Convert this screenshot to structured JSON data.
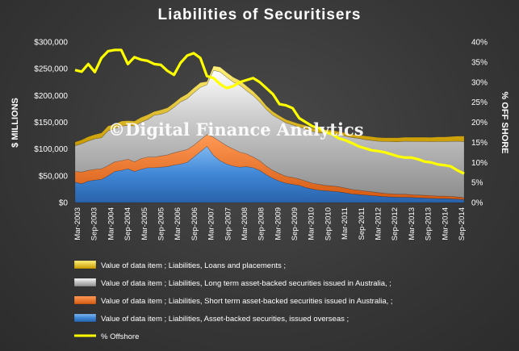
{
  "chart_data": {
    "type": "area",
    "title": "Liabilities  of Securitisers",
    "watermark": "©Digital Finance Analytics",
    "ylabel": "$ MILLIONS",
    "y2label": "% OFF SHORE",
    "ylim": [
      0,
      300000
    ],
    "y2lim": [
      0,
      0.4
    ],
    "yticks": [
      "$0",
      "$50,000",
      "$100,000",
      "$150,000",
      "$200,000",
      "$250,000",
      "$300,000"
    ],
    "y2ticks": [
      "0%",
      "5%",
      "10%",
      "15%",
      "20%",
      "25%",
      "30%",
      "35%",
      "40%"
    ],
    "xticks": [
      "Mar-2003",
      "Sep-2003",
      "Mar-2004",
      "Sep-2004",
      "Mar-2005",
      "Sep-2005",
      "Mar-2006",
      "Sep-2006",
      "Mar-2007",
      "Sep-2007",
      "Mar-2008",
      "Sep-2008",
      "Mar-2009",
      "Sep-2009",
      "Mar-2010",
      "Sep-2010",
      "Mar-2011",
      "Sep-2011",
      "Mar-2012",
      "Sep-2012",
      "Mar-2013",
      "Sep-2013",
      "Mar-2014",
      "Sep-2014"
    ],
    "stacked": true,
    "legend_position": "bottom",
    "series": [
      {
        "name": "Value of data item ;  Liabilities, Asset-backed securities, issued overseas ;",
        "color": "#4a8fd8",
        "values": [
          38000,
          35000,
          40000,
          42000,
          43000,
          50000,
          58000,
          60000,
          63000,
          58000,
          62000,
          65000,
          65000,
          66000,
          67000,
          70000,
          72000,
          75000,
          85000,
          95000,
          105000,
          88000,
          78000,
          72000,
          68000,
          66000,
          67000,
          65000,
          60000,
          52000,
          45000,
          40000,
          36000,
          34000,
          32000,
          28000,
          25000,
          23000,
          22000,
          21000,
          20000,
          18000,
          16000,
          15000,
          14000,
          13000,
          12000,
          11000,
          10500,
          10000,
          10000,
          9500,
          9000,
          8500,
          8000,
          7500,
          7500,
          7000,
          6500,
          5500
        ]
      },
      {
        "name": "Value of data item ;  Liabilities, Short term asset-backed securities issued in Australia, ;",
        "color": "#f07830",
        "values": [
          20000,
          22000,
          20000,
          20000,
          20000,
          19000,
          18000,
          18000,
          18000,
          18000,
          20000,
          20000,
          20000,
          21000,
          22000,
          23000,
          24000,
          24000,
          22000,
          22000,
          22000,
          34000,
          36000,
          34000,
          32000,
          28000,
          24000,
          20000,
          18000,
          16000,
          15000,
          14000,
          13000,
          13000,
          12000,
          12000,
          11000,
          11000,
          10000,
          10000,
          9500,
          9000,
          8500,
          8000,
          7500,
          7000,
          6500,
          6000,
          5800,
          5500,
          5500,
          5200,
          5000,
          5000,
          4800,
          4500,
          4500,
          4300,
          4000,
          3500
        ]
      },
      {
        "name": "Value of data item ;  Liabilities, Long term asset-backed securities issued in Australia, ;",
        "color": "#bdbdbd",
        "values": [
          48000,
          53000,
          55000,
          57000,
          58000,
          65000,
          62000,
          65000,
          63000,
          67000,
          68000,
          70000,
          78000,
          78000,
          80000,
          85000,
          92000,
          95000,
          98000,
          98000,
          93000,
          125000,
          130000,
          128000,
          125000,
          125000,
          118000,
          115000,
          110000,
          106000,
          103000,
          102000,
          100000,
          98000,
          97000,
          98000,
          97000,
          96000,
          98000,
          98000,
          97000,
          97000,
          97000,
          97000,
          96000,
          96000,
          96000,
          97000,
          97500,
          98000,
          99000,
          99500,
          100000,
          100500,
          101000,
          102000,
          102000,
          103000,
          104000,
          105000
        ]
      },
      {
        "name": "Value of data item ;  Liabilities, Loans and placements ;",
        "color": "#f2c400",
        "values": [
          7000,
          7000,
          8000,
          8000,
          9000,
          9000,
          8000,
          9000,
          9000,
          9000,
          9000,
          9000,
          7000,
          8000,
          8000,
          8000,
          8000,
          9000,
          9000,
          9000,
          6000,
          8000,
          9000,
          9000,
          9000,
          9000,
          9000,
          8000,
          8000,
          7000,
          7000,
          6000,
          6000,
          6000,
          6000,
          6000,
          6000,
          6000,
          6000,
          6000,
          6000,
          6000,
          6000,
          6000,
          7000,
          7000,
          7000,
          7000,
          7200,
          7500,
          7500,
          7800,
          8000,
          8000,
          8000,
          8500,
          8500,
          9000,
          9500,
          10000
        ]
      },
      {
        "name": "% Offshore",
        "color": "#ffff00",
        "axis": "secondary",
        "type": "line",
        "values": [
          0.33,
          0.326,
          0.345,
          0.325,
          0.36,
          0.377,
          0.38,
          0.38,
          0.345,
          0.362,
          0.356,
          0.353,
          0.345,
          0.343,
          0.328,
          0.318,
          0.348,
          0.366,
          0.372,
          0.36,
          0.315,
          0.31,
          0.295,
          0.285,
          0.29,
          0.3,
          0.305,
          0.31,
          0.3,
          0.285,
          0.27,
          0.245,
          0.242,
          0.235,
          0.21,
          0.2,
          0.19,
          0.185,
          0.175,
          0.17,
          0.16,
          0.155,
          0.148,
          0.14,
          0.135,
          0.13,
          0.128,
          0.125,
          0.12,
          0.115,
          0.112,
          0.112,
          0.108,
          0.102,
          0.1,
          0.095,
          0.093,
          0.09,
          0.08,
          0.072
        ]
      }
    ]
  }
}
